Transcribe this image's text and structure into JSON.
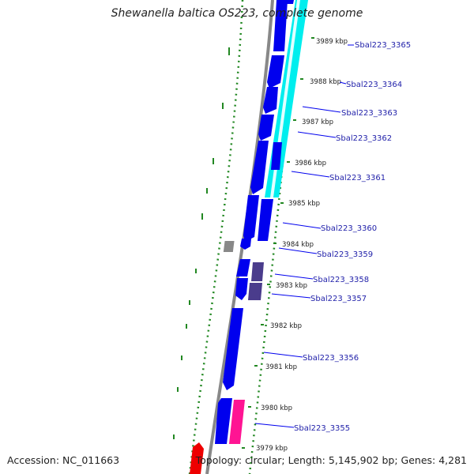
{
  "title": "Shewanella baltica OS223, complete genome",
  "accession": "Accession: NC_011663",
  "summary": "Topology: circular; Length: 5,145,902 bp; Genes: 4,281",
  "colors": {
    "backbone": "#888888",
    "gc_skew": "#228822",
    "cds": "#0000ee",
    "blast_hit": "#00eeee",
    "blast_weak": "#4a3c8c",
    "other_hit": "#ff1493",
    "rna": "#ee0000"
  },
  "kbp_markers": [
    "3989 kbp",
    "3988 kbp",
    "3987 kbp",
    "3986 kbp",
    "3985 kbp",
    "3984 kbp",
    "3983 kbp",
    "3982 kbp",
    "3981 kbp",
    "3980 kbp",
    "3979 kbp"
  ],
  "gene_labels": [
    "Sbal223_3365",
    "Sbal223_3364",
    "Sbal223_3363",
    "Sbal223_3362",
    "Sbal223_3361",
    "Sbal223_3360",
    "Sbal223_3359",
    "Sbal223_3358",
    "Sbal223_3357",
    "Sbal223_3356",
    "Sbal223_3355"
  ]
}
